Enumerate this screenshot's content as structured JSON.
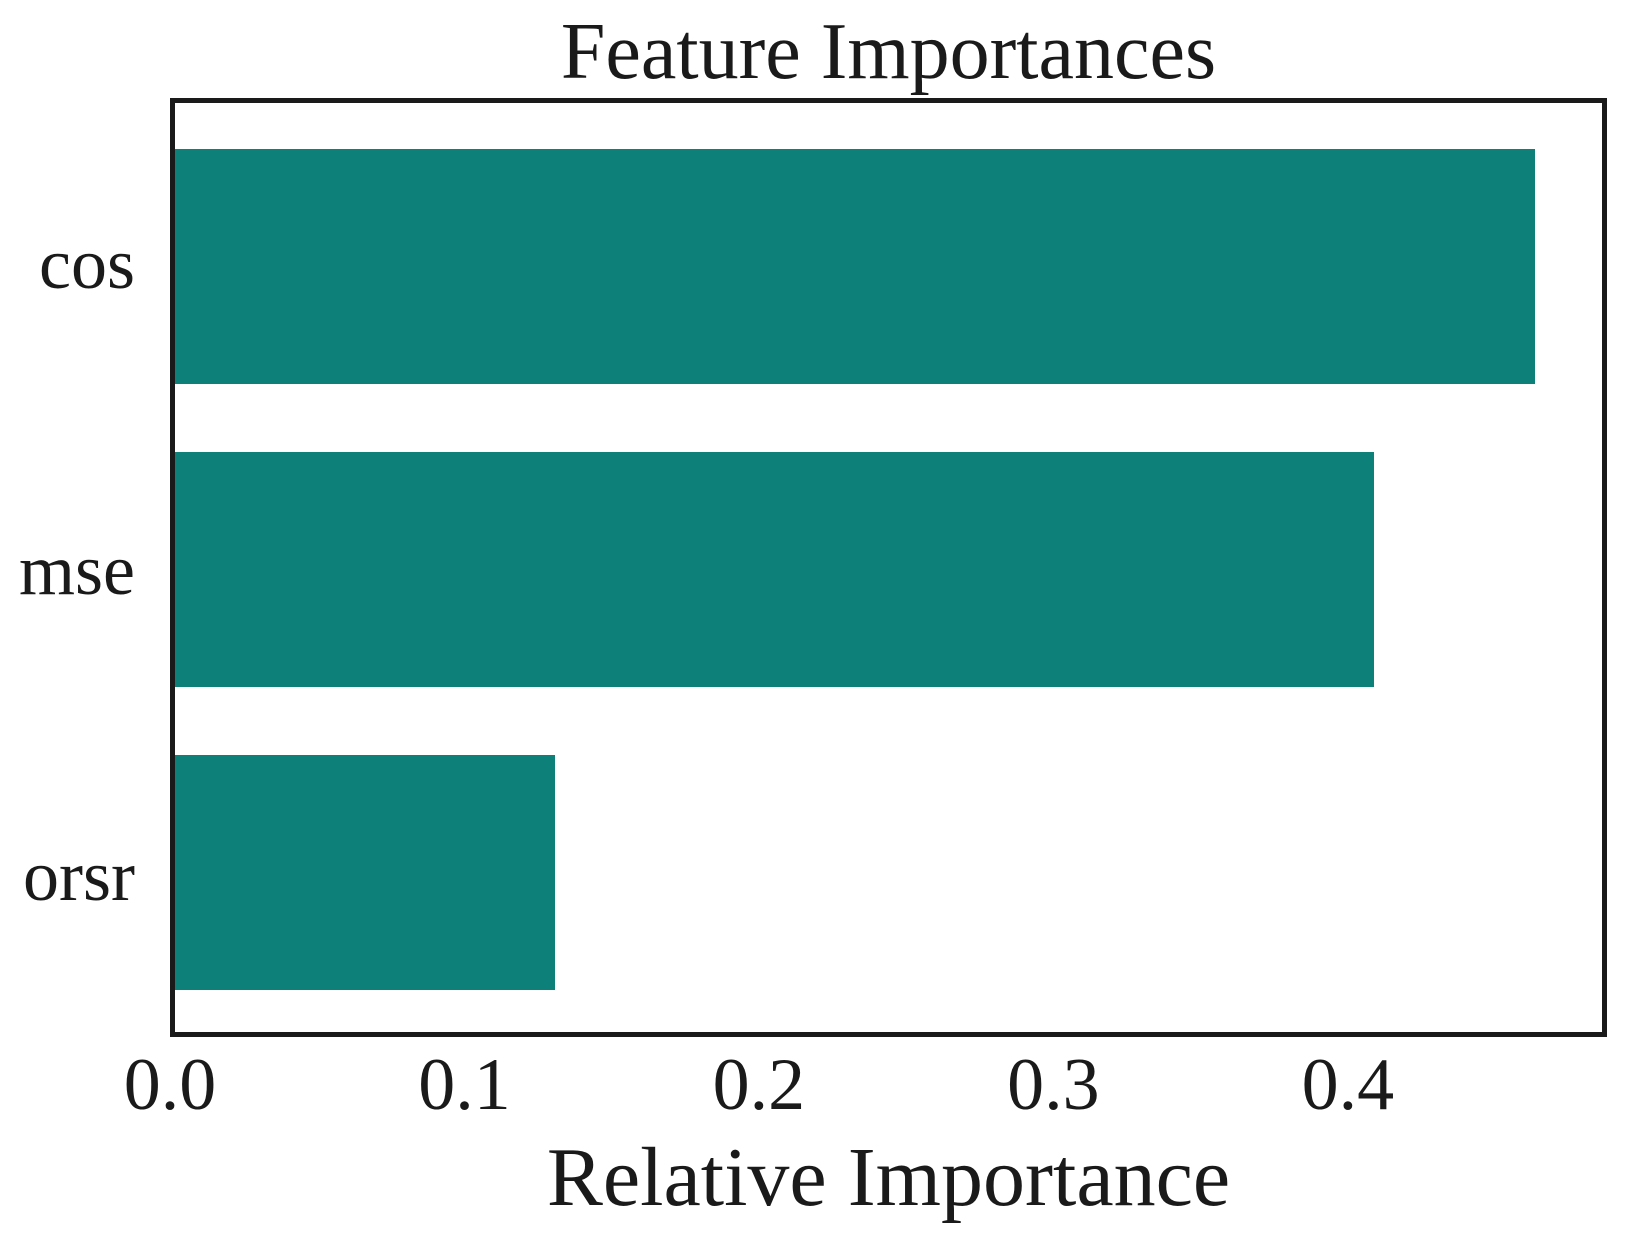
{
  "chart_data": {
    "type": "bar",
    "orientation": "horizontal",
    "title": "Feature Importances",
    "xlabel": "Relative Importance",
    "ylabel": "",
    "categories": [
      "cos",
      "mse",
      "orsr"
    ],
    "values": [
      0.465,
      0.41,
      0.13
    ],
    "xlim": [
      0,
      0.488
    ],
    "xticks": [
      0.0,
      0.1,
      0.2,
      0.3,
      0.4
    ],
    "xtick_labels": [
      "0.0",
      "0.1",
      "0.2",
      "0.3",
      "0.4"
    ],
    "bar_tops_pct": [
      5.0,
      37.6,
      70.2
    ],
    "grid": false,
    "legend": "none",
    "colors": {
      "bar": "#0d807a",
      "axis": "#1a1a1a",
      "text": "#1a1a1a",
      "background": "#ffffff"
    }
  }
}
